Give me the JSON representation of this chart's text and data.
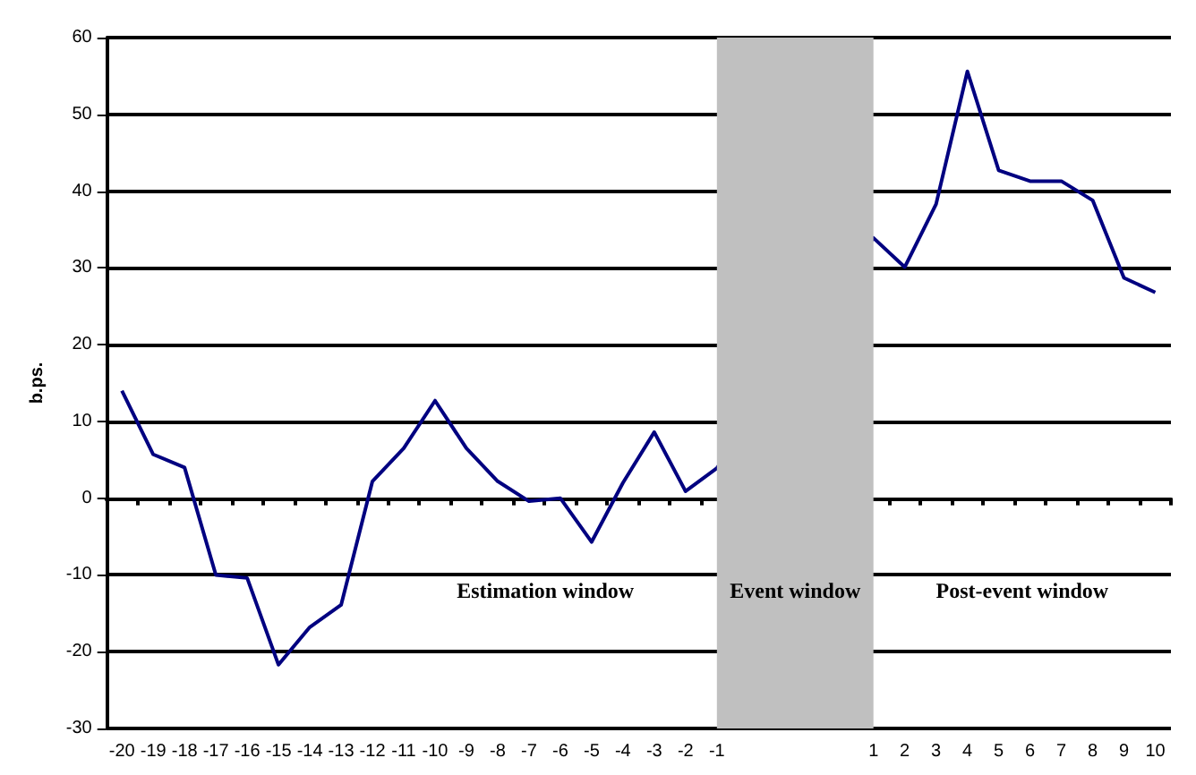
{
  "chart_data": {
    "type": "line",
    "ylabel": "b.ps.",
    "categories": [
      "-20",
      "-19",
      "-18",
      "-17",
      "-16",
      "-15",
      "-14",
      "-13",
      "-12",
      "-11",
      "-10",
      "-9",
      "-8",
      "-7",
      "-6",
      "-5",
      "-4",
      "-3",
      "-2",
      "-1",
      null,
      null,
      null,
      null,
      "1",
      "2",
      "3",
      "4",
      "5",
      "6",
      "7",
      "8",
      "9",
      "10"
    ],
    "series": [
      {
        "color": "#000080",
        "values": [
          14.0,
          5.7,
          4.0,
          -10.0,
          -10.4,
          -21.7,
          -16.8,
          -13.9,
          2.2,
          6.5,
          12.7,
          6.5,
          2.2,
          -0.4,
          0,
          -5.7,
          2.0,
          8.6,
          0.9,
          3.9,
          null,
          null,
          null,
          null,
          33.9,
          30.1,
          38.3,
          55.6,
          42.7,
          41.3,
          41.3,
          38.8,
          28.7,
          26.8
        ]
      }
    ],
    "ylim": [
      -30,
      60
    ],
    "yticks": [
      -30,
      -20,
      -10,
      0,
      10,
      20,
      30,
      40,
      50,
      60
    ],
    "grid": "y",
    "marker": "none",
    "line_style": "solid",
    "bands": [
      {
        "axis": "x",
        "from": "-1",
        "to": "1",
        "label": "Event window",
        "color": "#c0c0c0"
      }
    ],
    "annotations": [
      "Estimation window",
      "Post-event window"
    ]
  }
}
